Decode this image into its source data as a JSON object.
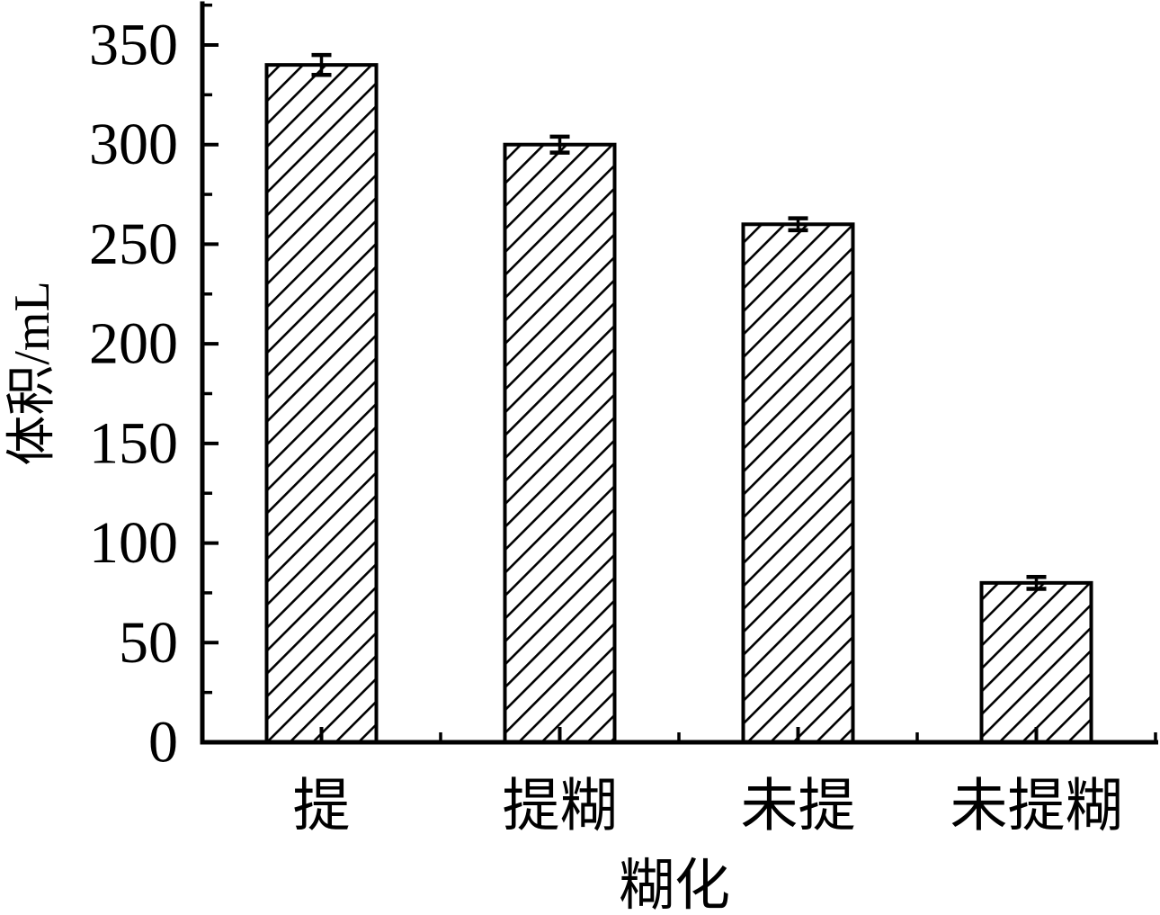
{
  "figure": {
    "background_color": "#ffffff",
    "line_color": "#000000"
  },
  "chart_data": {
    "type": "bar",
    "title": "",
    "categories": [
      "提",
      "提糊",
      "未提",
      "未提糊"
    ],
    "values": [
      340,
      300,
      260,
      80
    ],
    "errors": [
      5,
      4,
      3,
      3
    ],
    "xlabel": "糊化",
    "ylabel": "体积/mL",
    "ylim": [
      0,
      371
    ],
    "yticks_major": [
      0,
      50,
      100,
      150,
      200,
      250,
      300,
      350
    ],
    "yticks_minor": [
      25,
      75,
      125,
      175,
      225,
      275,
      325,
      370
    ],
    "grid": false,
    "legend": null,
    "bar_style": {
      "fill": "#ffffff",
      "hatch": "diagonal-forward",
      "outline": "#000000"
    },
    "error_bars": "caps-both-ends"
  }
}
